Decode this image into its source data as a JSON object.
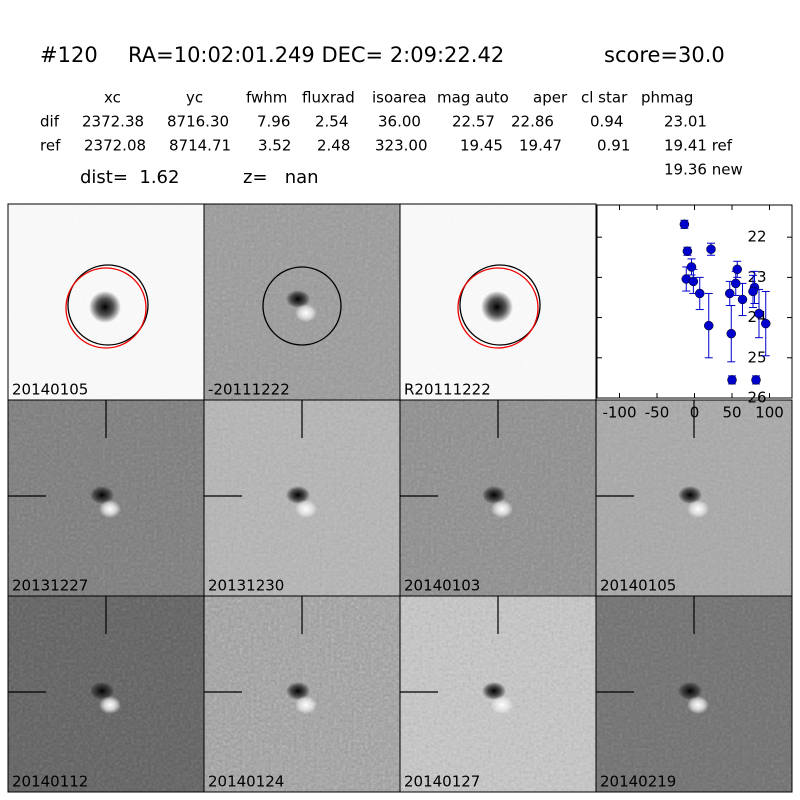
{
  "header": {
    "id": "#120",
    "coords": "RA=10:02:01.249 DEC= 2:09:22.42",
    "score": "score=30.0"
  },
  "table": {
    "columns": [
      "xc",
      "yc",
      "fwhm",
      "fluxrad",
      "isoarea",
      "mag auto",
      "aper",
      "cl star",
      "phmag"
    ],
    "rows": [
      [
        "dif",
        "2372.38",
        "8716.30",
        "7.96",
        "2.54",
        "36.00",
        "22.57",
        "22.86",
        "0.94",
        "23.01"
      ],
      [
        "ref",
        "2372.08",
        "8714.71",
        "3.52",
        "2.48",
        "323.00",
        "19.45",
        "19.47",
        "0.91",
        "19.41 ref"
      ]
    ],
    "extra": "19.36 new"
  },
  "dist": "dist=  1.62",
  "z": "z=   nan",
  "panels": [
    "20140105",
    "-20111222",
    "R20111222",
    "20131227",
    "20131230",
    "20140103",
    "20140105",
    "20140112",
    "20140124",
    "20140127",
    "20140219"
  ],
  "chart_data": {
    "type": "scatter",
    "xlim": [
      -130,
      130
    ],
    "ylim": [
      26,
      21.2
    ],
    "xticks": [
      -100,
      -50,
      0,
      50,
      100
    ],
    "yticks": [
      22,
      23,
      24,
      25,
      26
    ],
    "series": [
      {
        "color": "#0000cc",
        "x": [
          -13.5,
          -9.5,
          -4,
          -11,
          -1.5,
          7,
          22,
          19,
          47,
          49,
          55,
          57,
          50,
          64,
          80,
          82,
          78,
          86,
          95
        ],
        "values": [
          21.68,
          22.35,
          22.74,
          23.04,
          23.1,
          23.4,
          22.3,
          24.2,
          23.4,
          24.4,
          23.15,
          22.8,
          25.55,
          23.55,
          23.25,
          25.55,
          23.35,
          23.9,
          24.15
        ],
        "errors": [
          0.1,
          0.1,
          0.2,
          0.3,
          0.3,
          0.4,
          0.15,
          0.8,
          0.3,
          0.7,
          0.3,
          0.2,
          0.1,
          0.4,
          0.4,
          0.1,
          0.4,
          0.6,
          0.8
        ]
      }
    ]
  }
}
